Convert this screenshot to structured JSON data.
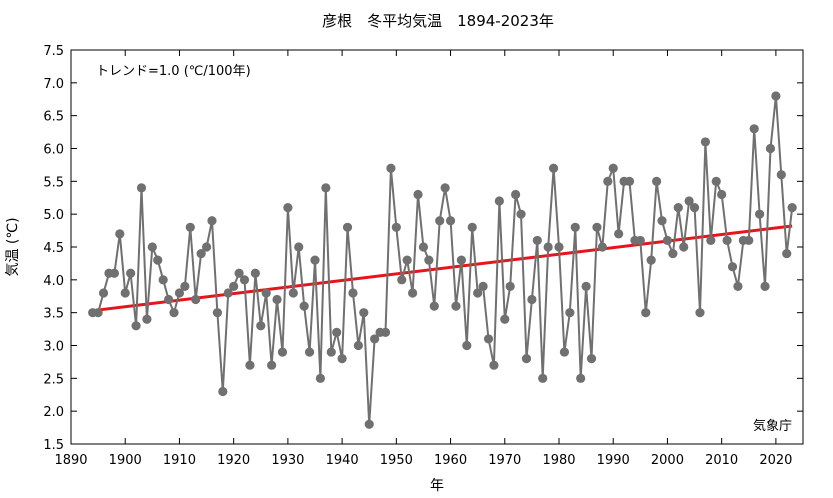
{
  "chart_data": {
    "type": "line",
    "title": "彦根　冬平均気温　1894-2023年",
    "xlabel": "年",
    "ylabel": "気温 (℃)",
    "xlim": [
      1890,
      2025
    ],
    "ylim": [
      1.5,
      7.5
    ],
    "xticks": [
      1890,
      1900,
      1910,
      1920,
      1930,
      1940,
      1950,
      1960,
      1970,
      1980,
      1990,
      2000,
      2010,
      2020
    ],
    "yticks": [
      1.5,
      2.0,
      2.5,
      3.0,
      3.5,
      4.0,
      4.5,
      5.0,
      5.5,
      6.0,
      6.5,
      7.0,
      7.5
    ],
    "xtick_labels": [
      "1890",
      "1900",
      "1910",
      "1920",
      "1930",
      "1940",
      "1950",
      "1960",
      "1970",
      "1980",
      "1990",
      "2000",
      "2010",
      "2020"
    ],
    "ytick_labels": [
      "1.5",
      "2.0",
      "2.5",
      "3.0",
      "3.5",
      "4.0",
      "4.5",
      "5.0",
      "5.5",
      "6.0",
      "6.5",
      "7.0",
      "7.5"
    ],
    "annotation": "トレンド=1.0 (℃/100年)",
    "source": "気象庁",
    "grid": false,
    "series": [
      {
        "kind": "observed",
        "color": "#707070",
        "x": [
          1894,
          1895,
          1896,
          1897,
          1898,
          1899,
          1900,
          1901,
          1902,
          1903,
          1904,
          1905,
          1906,
          1907,
          1908,
          1909,
          1910,
          1911,
          1912,
          1913,
          1914,
          1915,
          1916,
          1917,
          1918,
          1919,
          1920,
          1921,
          1922,
          1923,
          1924,
          1925,
          1926,
          1927,
          1928,
          1929,
          1930,
          1931,
          1932,
          1933,
          1934,
          1935,
          1936,
          1937,
          1938,
          1939,
          1940,
          1941,
          1942,
          1943,
          1944,
          1945,
          1946,
          1947,
          1948,
          1949,
          1950,
          1951,
          1952,
          1953,
          1954,
          1955,
          1956,
          1957,
          1958,
          1959,
          1960,
          1961,
          1962,
          1963,
          1964,
          1965,
          1966,
          1967,
          1968,
          1969,
          1970,
          1971,
          1972,
          1973,
          1974,
          1975,
          1976,
          1977,
          1978,
          1979,
          1980,
          1981,
          1982,
          1983,
          1984,
          1985,
          1986,
          1987,
          1988,
          1989,
          1990,
          1991,
          1992,
          1993,
          1994,
          1995,
          1996,
          1997,
          1998,
          1999,
          2000,
          2001,
          2002,
          2003,
          2004,
          2005,
          2006,
          2007,
          2008,
          2009,
          2010,
          2011,
          2012,
          2013,
          2014,
          2015,
          2016,
          2017,
          2018,
          2019,
          2020,
          2021,
          2022,
          2023
        ],
        "y": [
          3.5,
          3.5,
          3.8,
          4.1,
          4.1,
          4.7,
          3.8,
          4.1,
          3.3,
          5.4,
          3.4,
          4.5,
          4.3,
          4.0,
          3.7,
          3.5,
          3.8,
          3.9,
          4.8,
          3.7,
          4.4,
          4.5,
          4.9,
          3.5,
          2.3,
          3.8,
          3.9,
          4.1,
          4.0,
          2.7,
          4.1,
          3.3,
          3.8,
          2.7,
          3.7,
          2.9,
          5.1,
          3.8,
          4.5,
          3.6,
          2.9,
          4.3,
          2.5,
          5.4,
          2.9,
          3.2,
          2.8,
          4.8,
          3.8,
          3.0,
          3.5,
          1.8,
          3.1,
          3.2,
          3.2,
          5.7,
          4.8,
          4.0,
          4.3,
          3.8,
          5.3,
          4.5,
          4.3,
          3.6,
          4.9,
          5.4,
          4.9,
          3.6,
          4.3,
          3.0,
          4.8,
          3.8,
          3.9,
          3.1,
          2.7,
          5.2,
          3.4,
          3.9,
          5.3,
          5.0,
          2.8,
          3.7,
          4.6,
          2.5,
          4.5,
          5.7,
          4.5,
          2.9,
          3.5,
          4.8,
          2.5,
          3.9,
          2.8,
          4.8,
          4.5,
          5.5,
          5.7,
          4.7,
          5.5,
          5.5,
          4.6,
          4.6,
          3.5,
          4.3,
          5.5,
          4.9,
          4.6,
          4.4,
          5.1,
          4.5,
          5.2,
          5.1,
          3.5,
          6.1,
          4.6,
          5.5,
          5.3,
          4.6,
          4.2,
          3.9,
          4.6,
          4.6,
          6.3,
          5.0,
          3.9,
          6.0,
          6.8,
          5.6,
          4.4,
          5.1
        ]
      },
      {
        "kind": "trend",
        "color": "#e8141a",
        "x": [
          1894,
          2023
        ],
        "y": [
          3.53,
          4.82
        ]
      }
    ]
  }
}
